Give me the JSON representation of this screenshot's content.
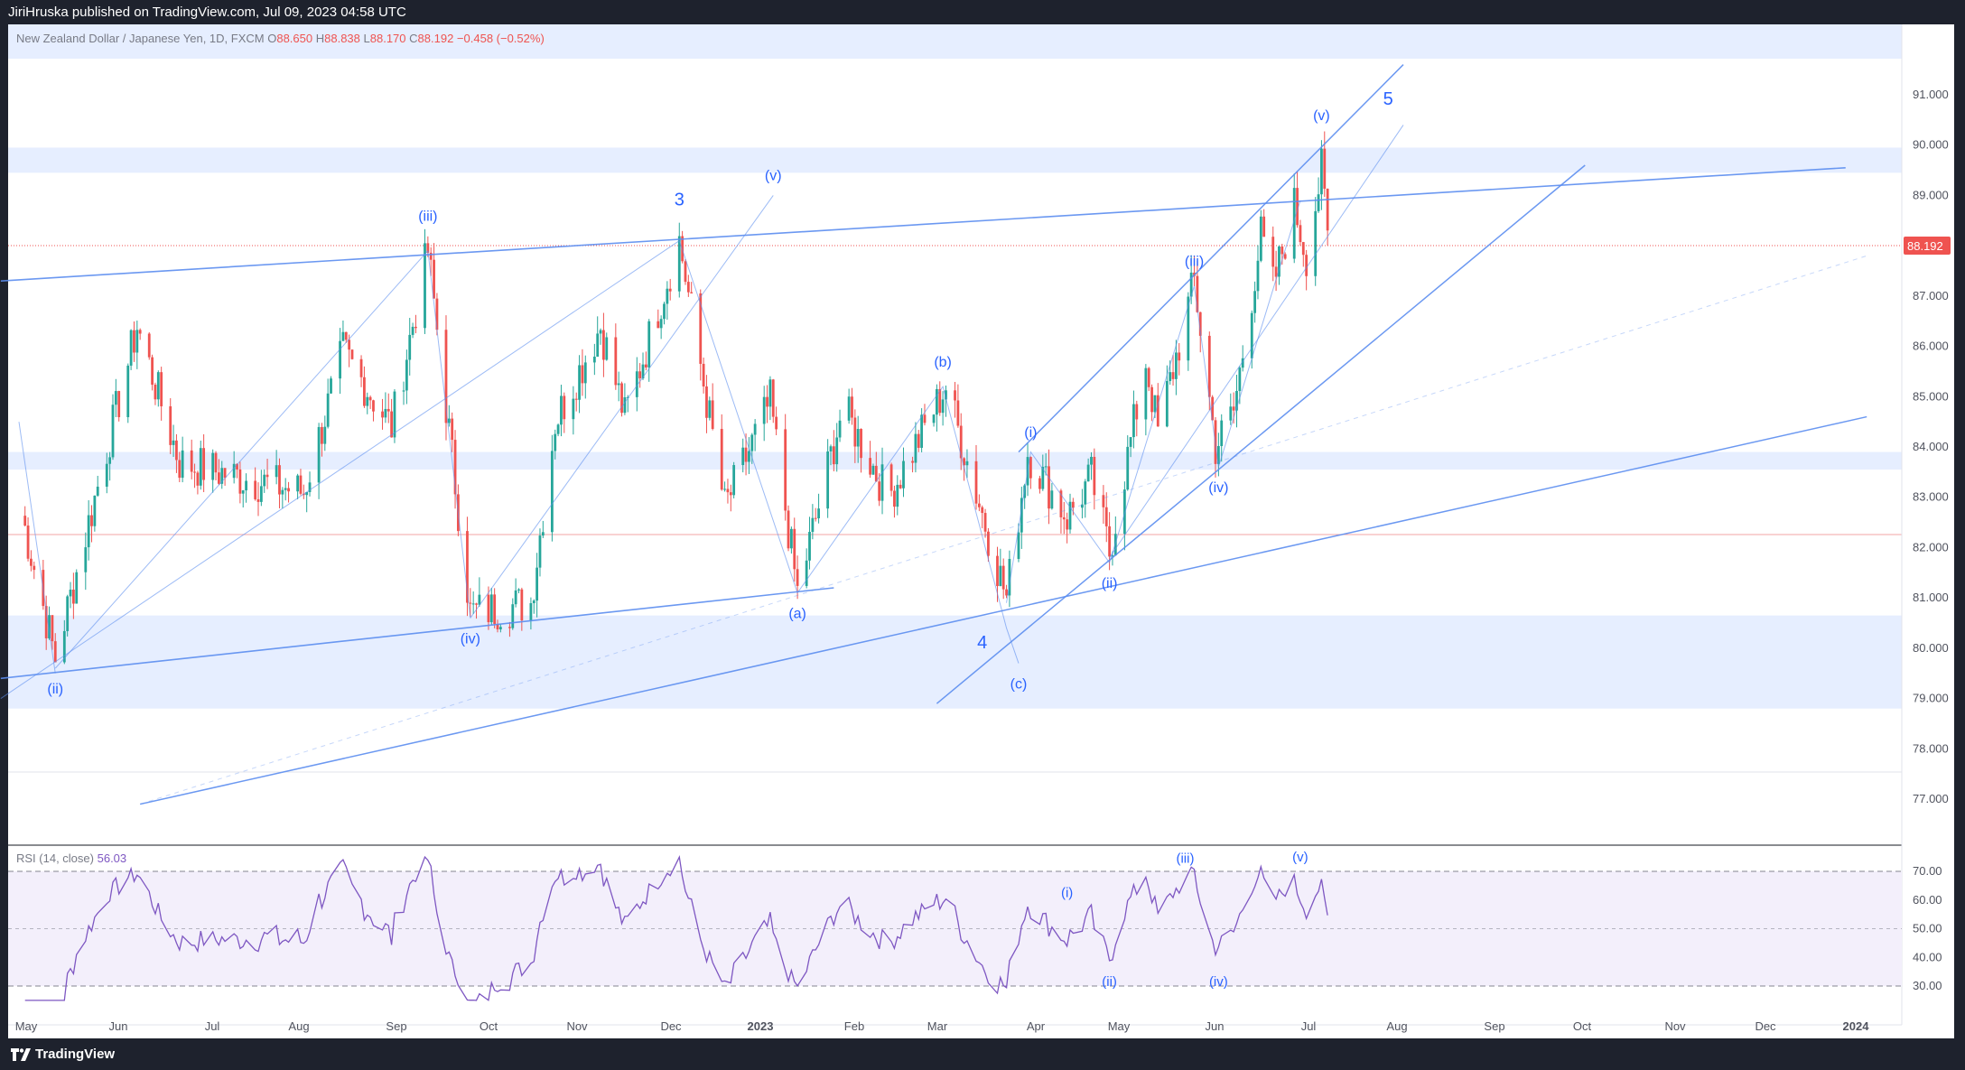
{
  "header": {
    "published": "JiriHruska published on TradingView.com, Jul 09, 2023 04:58 UTC"
  },
  "footer": {
    "brand": "TradingView"
  },
  "legend": {
    "symbol": "New Zealand Dollar / Japanese Yen, 1D, FXCM",
    "open_label": "O",
    "open": "88.650",
    "high_label": "H",
    "high": "88.838",
    "low_label": "L",
    "low": "88.170",
    "close_label": "C",
    "close": "88.192",
    "change": "−0.458 (−0.52%)",
    "rsi_label": "RSI (14, close)",
    "rsi_value": "56.03"
  },
  "colors": {
    "up": "#26a69a",
    "down": "#ef5350",
    "line": "#5b8def",
    "rsi": "#7e57c2",
    "band": "#e6eeff",
    "price_badge": "#ef5350"
  },
  "chart_data": [
    {
      "type": "candlestick",
      "title": "",
      "y_ticks": [
        "91.000",
        "90.000",
        "89.000",
        "88.000",
        "87.000",
        "86.000",
        "85.000",
        "84.000",
        "83.000",
        "82.000",
        "81.000",
        "80.000",
        "79.000",
        "78.000",
        "77.000"
      ],
      "x_ticks": [
        "May",
        "Jun",
        "Jul",
        "Aug",
        "Sep",
        "Oct",
        "Nov",
        "Dec",
        "2023",
        "Feb",
        "Mar",
        "Apr",
        "May",
        "Jun",
        "Jul",
        "Aug",
        "Sep",
        "Oct",
        "Nov",
        "Dec",
        "2024"
      ],
      "ylim": [
        76.9,
        91.9
      ],
      "last_price": "88.192",
      "anchors": [
        [
          "2022-05-01",
          82.9
        ],
        [
          "2022-05-13",
          79.8
        ],
        [
          "2022-06-09",
          86.4
        ],
        [
          "2022-06-23",
          83.7
        ],
        [
          "2022-07-13",
          83.4
        ],
        [
          "2022-08-03",
          83.1
        ],
        [
          "2022-08-16",
          85.9
        ],
        [
          "2022-09-01",
          84.4
        ],
        [
          "2022-09-13",
          87.9
        ],
        [
          "2022-09-27",
          80.7
        ],
        [
          "2022-10-17",
          80.9
        ],
        [
          "2022-10-25",
          84.5
        ],
        [
          "2022-11-09",
          86.4
        ],
        [
          "2022-11-17",
          84.6
        ],
        [
          "2022-12-05",
          88.1
        ],
        [
          "2022-12-20",
          82.8
        ],
        [
          "2023-01-04",
          84.9
        ],
        [
          "2023-01-13",
          81.1
        ],
        [
          "2023-01-28",
          84.8
        ],
        [
          "2023-02-12",
          83.0
        ],
        [
          "2023-03-03",
          85.2
        ],
        [
          "2023-03-23",
          81.0
        ],
        [
          "2023-03-30",
          83.9
        ],
        [
          "2023-04-12",
          82.6
        ],
        [
          "2023-04-20",
          83.4
        ],
        [
          "2023-04-26",
          81.9
        ],
        [
          "2023-05-08",
          85.7
        ],
        [
          "2023-05-12",
          84.3
        ],
        [
          "2023-05-24",
          87.3
        ],
        [
          "2023-05-31",
          84.0
        ],
        [
          "2023-06-06",
          84.7
        ],
        [
          "2023-06-15",
          88.2
        ],
        [
          "2023-06-19",
          87.2
        ],
        [
          "2023-06-26",
          88.8
        ],
        [
          "2023-06-30",
          87.8
        ],
        [
          "2023-07-05",
          89.5
        ],
        [
          "2023-07-07",
          88.2
        ]
      ],
      "bands": [
        [
          89.45,
          89.95
        ],
        [
          83.55,
          83.9
        ],
        [
          78.8,
          80.65
        ]
      ],
      "wave_labels": [
        {
          "text": "(ii)",
          "date": "2022-05-13",
          "price": 79.1
        },
        {
          "text": "(iii)",
          "date": "2022-09-13",
          "price": 88.5
        },
        {
          "text": "(iv)",
          "date": "2022-09-27",
          "price": 80.1
        },
        {
          "text": "3",
          "date": "2022-12-05",
          "price": 88.8
        },
        {
          "text": "(v)",
          "date": "2023-01-05",
          "price": 89.3
        },
        {
          "text": "(a)",
          "date": "2023-01-13",
          "price": 80.6
        },
        {
          "text": "(b)",
          "date": "2023-03-02",
          "price": 85.6
        },
        {
          "text": "4",
          "date": "2023-03-15",
          "price": 80.0
        },
        {
          "text": "(c)",
          "date": "2023-03-27",
          "price": 79.2
        },
        {
          "text": "(i)",
          "date": "2023-03-31",
          "price": 84.2
        },
        {
          "text": "(ii)",
          "date": "2023-04-26",
          "price": 81.2
        },
        {
          "text": "(iii)",
          "date": "2023-05-24",
          "price": 87.6
        },
        {
          "text": "(iv)",
          "date": "2023-06-01",
          "price": 83.1
        },
        {
          "text": "(v)",
          "date": "2023-07-05",
          "price": 90.5
        },
        {
          "text": "5",
          "date": "2023-07-27",
          "price": 90.8
        }
      ]
    },
    {
      "type": "line",
      "title": "",
      "series": [
        {
          "name": "RSI (14, close)",
          "last": 56.03
        }
      ],
      "y_ticks": [
        "70.00",
        "60.00",
        "50.00",
        "40.00",
        "30.00"
      ],
      "ylim": [
        25,
        75
      ],
      "levels": [
        70,
        50,
        30
      ],
      "wave_labels": [
        {
          "text": "(i)",
          "date": "2023-04-12",
          "value": 61
        },
        {
          "text": "(ii)",
          "date": "2023-04-26",
          "value": 30
        },
        {
          "text": "(iii)",
          "date": "2023-05-21",
          "value": 73
        },
        {
          "text": "(iv)",
          "date": "2023-06-01",
          "value": 30
        },
        {
          "text": "(v)",
          "date": "2023-06-28",
          "value": 73.5
        }
      ]
    }
  ]
}
